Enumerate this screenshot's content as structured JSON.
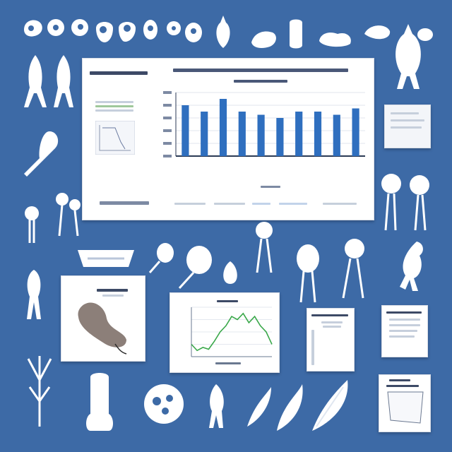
{
  "colors": {
    "background": "#3d6aa6",
    "card": "#ffffff",
    "bar": "#2f6fbf",
    "line": "#3aa84a",
    "axis": "#2b3a55"
  },
  "main_chart": {
    "title_line_1": "",
    "title_line_2": "",
    "side_title": "",
    "x_label": "",
    "chart_data": {
      "type": "bar",
      "categories": [
        "",
        "",
        "",
        "",
        "",
        "",
        "",
        "",
        "",
        ""
      ],
      "values": [
        8,
        7,
        9,
        7,
        6.5,
        6,
        7,
        7,
        6.5,
        7.5
      ],
      "ylim": [
        0,
        10
      ],
      "grid": true
    }
  },
  "line_card": {
    "title": "",
    "chart_data": {
      "type": "line",
      "x": [
        0,
        1,
        2,
        3,
        4,
        5,
        6,
        7,
        8,
        9,
        10,
        11,
        12,
        13,
        14
      ],
      "y": [
        2,
        1,
        1.5,
        1.2,
        2.5,
        4,
        5,
        6.5,
        6,
        7,
        5.5,
        6.5,
        5,
        4,
        2
      ],
      "ylim": [
        0,
        8
      ],
      "grid": true
    }
  },
  "icons": [
    "white-blob-icon",
    "white-blob-icon",
    "white-blob-icon",
    "white-blob-icon",
    "white-blob-icon",
    "white-blob-icon",
    "white-blob-icon",
    "bird-icon",
    "insect-icon",
    "jellyfish-icon",
    "leaf-icon"
  ]
}
